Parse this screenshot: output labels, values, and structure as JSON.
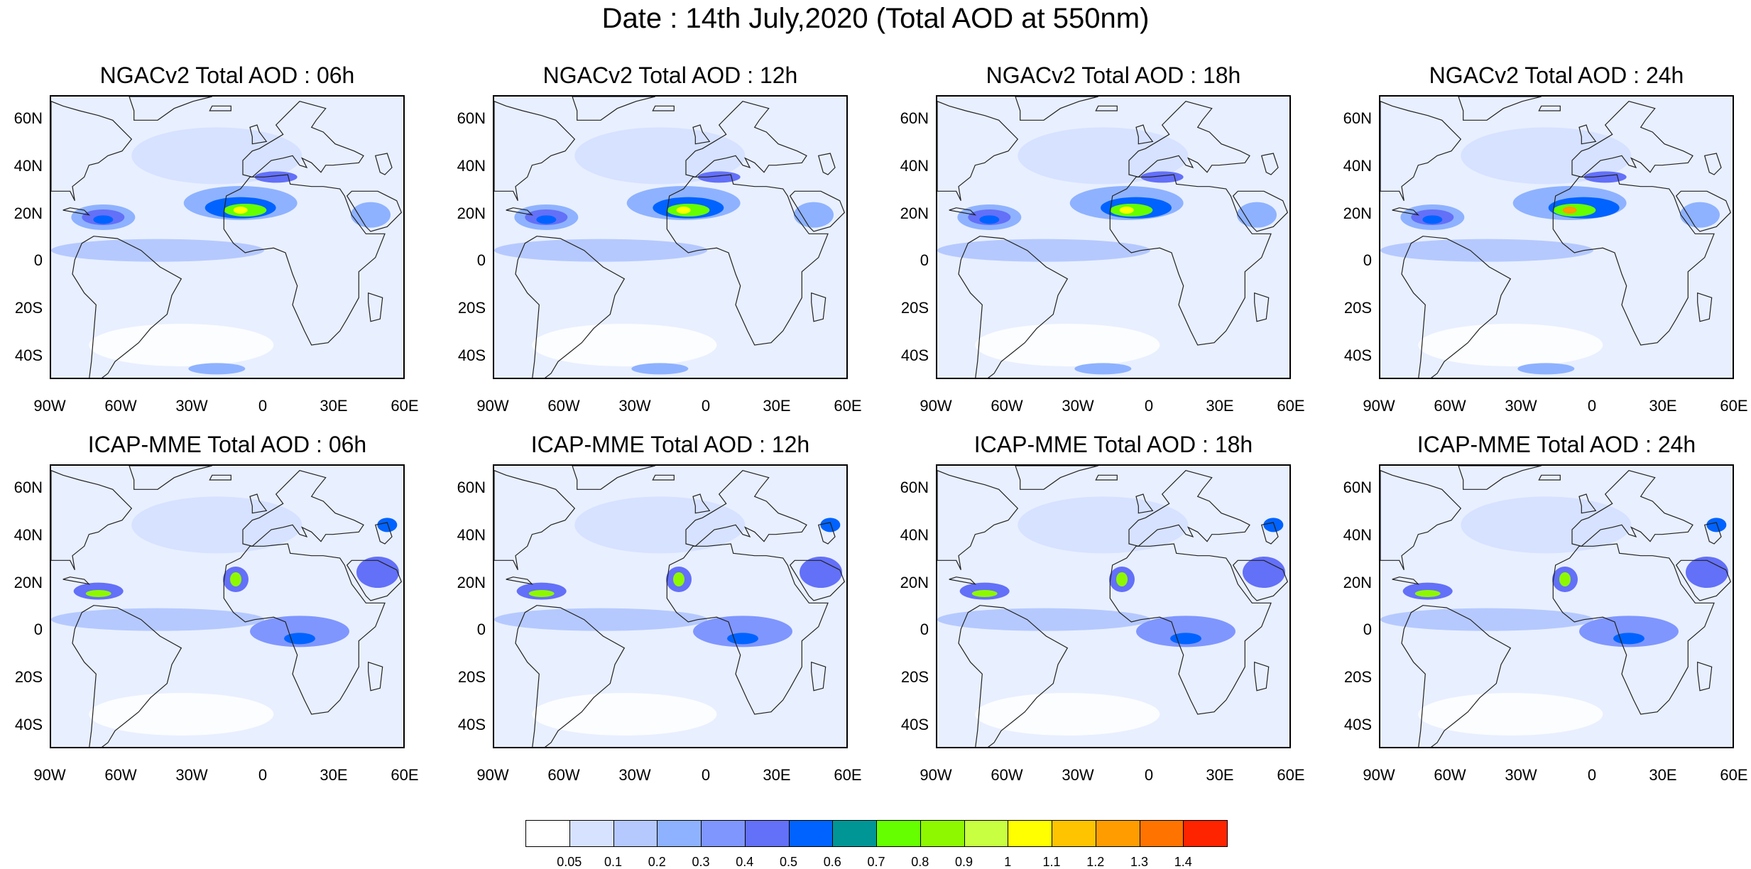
{
  "title": "Date : 14th July,2020 (Total AOD at 550nm)",
  "lat_labels": [
    "60N",
    "40N",
    "20N",
    "0",
    "20S",
    "40S"
  ],
  "lon_labels": [
    "90W",
    "60W",
    "30W",
    "0",
    "30E",
    "60E"
  ],
  "map_extent": {
    "lon": [
      -90,
      60
    ],
    "lat": [
      -50,
      70
    ]
  },
  "panels": [
    {
      "title": "NGACv2 Total AOD : 06h",
      "model": "NGACv2",
      "hour": 6
    },
    {
      "title": "NGACv2 Total AOD : 12h",
      "model": "NGACv2",
      "hour": 12
    },
    {
      "title": "NGACv2 Total AOD : 18h",
      "model": "NGACv2",
      "hour": 18
    },
    {
      "title": "NGACv2 Total AOD : 24h",
      "model": "NGACv2",
      "hour": 24
    },
    {
      "title": "ICAP-MME Total AOD : 06h",
      "model": "ICAP-MME",
      "hour": 6
    },
    {
      "title": "ICAP-MME Total AOD : 12h",
      "model": "ICAP-MME",
      "hour": 12
    },
    {
      "title": "ICAP-MME Total AOD : 18h",
      "model": "ICAP-MME",
      "hour": 18
    },
    {
      "title": "ICAP-MME Total AOD : 24h",
      "model": "ICAP-MME",
      "hour": 24
    }
  ],
  "colorbar": {
    "labels": [
      "0.05",
      "0.1",
      "0.2",
      "0.3",
      "0.4",
      "0.5",
      "0.6",
      "0.7",
      "0.8",
      "0.9",
      "1",
      "1.1",
      "1.2",
      "1.3",
      "1.4"
    ],
    "colors": [
      "#ffffff",
      "#d6e2ff",
      "#b5c9ff",
      "#8eb2ff",
      "#7f96ff",
      "#6370f8",
      "#0063ff",
      "#009696",
      "#66ff00",
      "#8ef800",
      "#c8ff40",
      "#ffff00",
      "#ffc400",
      "#ff9c00",
      "#ff7400",
      "#ff2400"
    ]
  }
}
